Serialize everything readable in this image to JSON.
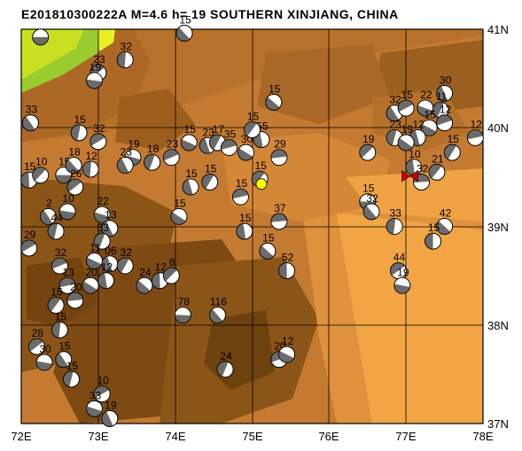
{
  "title": "E201810300222A  M=4.6  h= 19  SOUTHERN XINJIANG, CHINA",
  "axes": {
    "x_ticks": [
      "72E",
      "73E",
      "74E",
      "75E",
      "76E",
      "77E",
      "78E"
    ],
    "y_ticks": [
      "41N",
      "40N",
      "39N",
      "38N",
      "37N"
    ]
  },
  "colors": {
    "ocean_low": "#f2a545",
    "mid": "#c6782d",
    "high": "#8a5418",
    "peak": "#e8f020",
    "beachball_dark": "#6b6b6b",
    "epicenter": "#ffff00",
    "station": "#d00000"
  },
  "events": [
    {
      "lon": 72.25,
      "lat": 40.92,
      "depth": ""
    },
    {
      "lon": 74.12,
      "lat": 40.96,
      "depth": "15"
    },
    {
      "lon": 73.35,
      "lat": 40.69,
      "depth": "32"
    },
    {
      "lon": 73.0,
      "lat": 40.56,
      "depth": "23"
    },
    {
      "lon": 72.95,
      "lat": 40.48,
      "depth": "19"
    },
    {
      "lon": 72.12,
      "lat": 40.05,
      "depth": "33"
    },
    {
      "lon": 72.75,
      "lat": 39.95,
      "depth": "15"
    },
    {
      "lon": 73.0,
      "lat": 39.86,
      "depth": "32"
    },
    {
      "lon": 73.45,
      "lat": 39.7,
      "depth": "19"
    },
    {
      "lon": 73.35,
      "lat": 39.62,
      "depth": "23"
    },
    {
      "lon": 73.7,
      "lat": 39.65,
      "depth": "18"
    },
    {
      "lon": 73.95,
      "lat": 39.7,
      "depth": "23"
    },
    {
      "lon": 74.18,
      "lat": 39.85,
      "depth": "15"
    },
    {
      "lon": 74.42,
      "lat": 39.82,
      "depth": "23"
    },
    {
      "lon": 74.55,
      "lat": 39.85,
      "depth": "17"
    },
    {
      "lon": 74.7,
      "lat": 39.8,
      "depth": "35"
    },
    {
      "lon": 74.92,
      "lat": 39.75,
      "depth": "30"
    },
    {
      "lon": 75.12,
      "lat": 39.88,
      "depth": "55"
    },
    {
      "lon": 75.0,
      "lat": 39.98,
      "depth": "15"
    },
    {
      "lon": 75.35,
      "lat": 39.7,
      "depth": "29"
    },
    {
      "lon": 75.28,
      "lat": 40.26,
      "depth": "15"
    },
    {
      "lon": 72.1,
      "lat": 39.47,
      "depth": "15"
    },
    {
      "lon": 72.25,
      "lat": 39.52,
      "depth": "10"
    },
    {
      "lon": 72.55,
      "lat": 39.52,
      "depth": "15"
    },
    {
      "lon": 72.68,
      "lat": 39.62,
      "depth": "18"
    },
    {
      "lon": 72.9,
      "lat": 39.58,
      "depth": "12"
    },
    {
      "lon": 72.7,
      "lat": 39.4,
      "depth": "26"
    },
    {
      "lon": 72.6,
      "lat": 39.15,
      "depth": "10"
    },
    {
      "lon": 72.35,
      "lat": 39.1,
      "depth": "2"
    },
    {
      "lon": 72.45,
      "lat": 38.95,
      "depth": "44"
    },
    {
      "lon": 72.1,
      "lat": 38.78,
      "depth": "29"
    },
    {
      "lon": 73.05,
      "lat": 39.12,
      "depth": "22"
    },
    {
      "lon": 73.15,
      "lat": 38.98,
      "depth": "13"
    },
    {
      "lon": 73.05,
      "lat": 38.85,
      "depth": "33"
    },
    {
      "lon": 72.5,
      "lat": 38.6,
      "depth": "32"
    },
    {
      "lon": 72.95,
      "lat": 38.65,
      "depth": "11"
    },
    {
      "lon": 73.15,
      "lat": 38.62,
      "depth": "06"
    },
    {
      "lon": 73.35,
      "lat": 38.6,
      "depth": "32"
    },
    {
      "lon": 72.6,
      "lat": 38.4,
      "depth": "13"
    },
    {
      "lon": 72.9,
      "lat": 38.4,
      "depth": "20"
    },
    {
      "lon": 73.1,
      "lat": 38.45,
      "depth": "12"
    },
    {
      "lon": 72.45,
      "lat": 38.2,
      "depth": "15"
    },
    {
      "lon": 72.7,
      "lat": 38.25,
      "depth": "20"
    },
    {
      "lon": 73.6,
      "lat": 38.4,
      "depth": "24"
    },
    {
      "lon": 73.8,
      "lat": 38.45,
      "depth": "12"
    },
    {
      "lon": 73.95,
      "lat": 38.5,
      "depth": "8"
    },
    {
      "lon": 74.1,
      "lat": 38.1,
      "depth": "78"
    },
    {
      "lon": 74.55,
      "lat": 38.1,
      "depth": "116"
    },
    {
      "lon": 72.5,
      "lat": 37.95,
      "depth": "15"
    },
    {
      "lon": 72.2,
      "lat": 37.78,
      "depth": "28"
    },
    {
      "lon": 72.3,
      "lat": 37.62,
      "depth": "30"
    },
    {
      "lon": 72.55,
      "lat": 37.65,
      "depth": "15"
    },
    {
      "lon": 72.65,
      "lat": 37.45,
      "depth": "15"
    },
    {
      "lon": 73.05,
      "lat": 37.3,
      "depth": "10"
    },
    {
      "lon": 72.95,
      "lat": 37.15,
      "depth": "33"
    },
    {
      "lon": 73.15,
      "lat": 37.05,
      "depth": "19"
    },
    {
      "lon": 74.65,
      "lat": 37.55,
      "depth": "24"
    },
    {
      "lon": 75.35,
      "lat": 37.65,
      "depth": "20"
    },
    {
      "lon": 75.45,
      "lat": 37.7,
      "depth": "12"
    },
    {
      "lon": 74.2,
      "lat": 39.4,
      "depth": "15"
    },
    {
      "lon": 74.45,
      "lat": 39.45,
      "depth": "15"
    },
    {
      "lon": 74.85,
      "lat": 39.3,
      "depth": "15"
    },
    {
      "lon": 74.05,
      "lat": 39.1,
      "depth": "15"
    },
    {
      "lon": 74.9,
      "lat": 38.95,
      "depth": "15"
    },
    {
      "lon": 75.1,
      "lat": 39.48,
      "depth": "15"
    },
    {
      "lon": 75.35,
      "lat": 39.05,
      "depth": "37"
    },
    {
      "lon": 75.2,
      "lat": 38.75,
      "depth": "15"
    },
    {
      "lon": 75.45,
      "lat": 38.55,
      "depth": "52"
    },
    {
      "lon": 76.5,
      "lat": 39.75,
      "depth": "19"
    },
    {
      "lon": 76.5,
      "lat": 39.25,
      "depth": "15"
    },
    {
      "lon": 76.55,
      "lat": 39.15,
      "depth": "32"
    },
    {
      "lon": 76.85,
      "lat": 39.0,
      "depth": "33"
    },
    {
      "lon": 76.9,
      "lat": 38.55,
      "depth": "44"
    },
    {
      "lon": 76.95,
      "lat": 38.4,
      "depth": "19"
    },
    {
      "lon": 76.85,
      "lat": 40.15,
      "depth": "32"
    },
    {
      "lon": 76.85,
      "lat": 39.9,
      "depth": "23"
    },
    {
      "lon": 77.0,
      "lat": 40.2,
      "depth": "15"
    },
    {
      "lon": 77.25,
      "lat": 40.2,
      "depth": "22"
    },
    {
      "lon": 77.5,
      "lat": 40.35,
      "depth": "30"
    },
    {
      "lon": 77.45,
      "lat": 40.18,
      "depth": "11"
    },
    {
      "lon": 77.5,
      "lat": 40.05,
      "depth": "12"
    },
    {
      "lon": 77.3,
      "lat": 40.0,
      "depth": "15"
    },
    {
      "lon": 77.15,
      "lat": 39.9,
      "depth": "12"
    },
    {
      "lon": 77.6,
      "lat": 39.75,
      "depth": "15"
    },
    {
      "lon": 77.9,
      "lat": 39.9,
      "depth": "12"
    },
    {
      "lon": 77.0,
      "lat": 39.85,
      "depth": "19"
    },
    {
      "lon": 77.1,
      "lat": 39.6,
      "depth": "10"
    },
    {
      "lon": 77.4,
      "lat": 39.55,
      "depth": "21"
    },
    {
      "lon": 77.2,
      "lat": 39.45,
      "depth": "32"
    },
    {
      "lon": 77.5,
      "lat": 39.0,
      "depth": "42"
    },
    {
      "lon": 77.35,
      "lat": 38.85,
      "depth": "15"
    }
  ],
  "main_event": {
    "lon": 75.12,
    "lat": 39.43
  },
  "station": {
    "lon": 77.05,
    "lat": 39.51
  }
}
